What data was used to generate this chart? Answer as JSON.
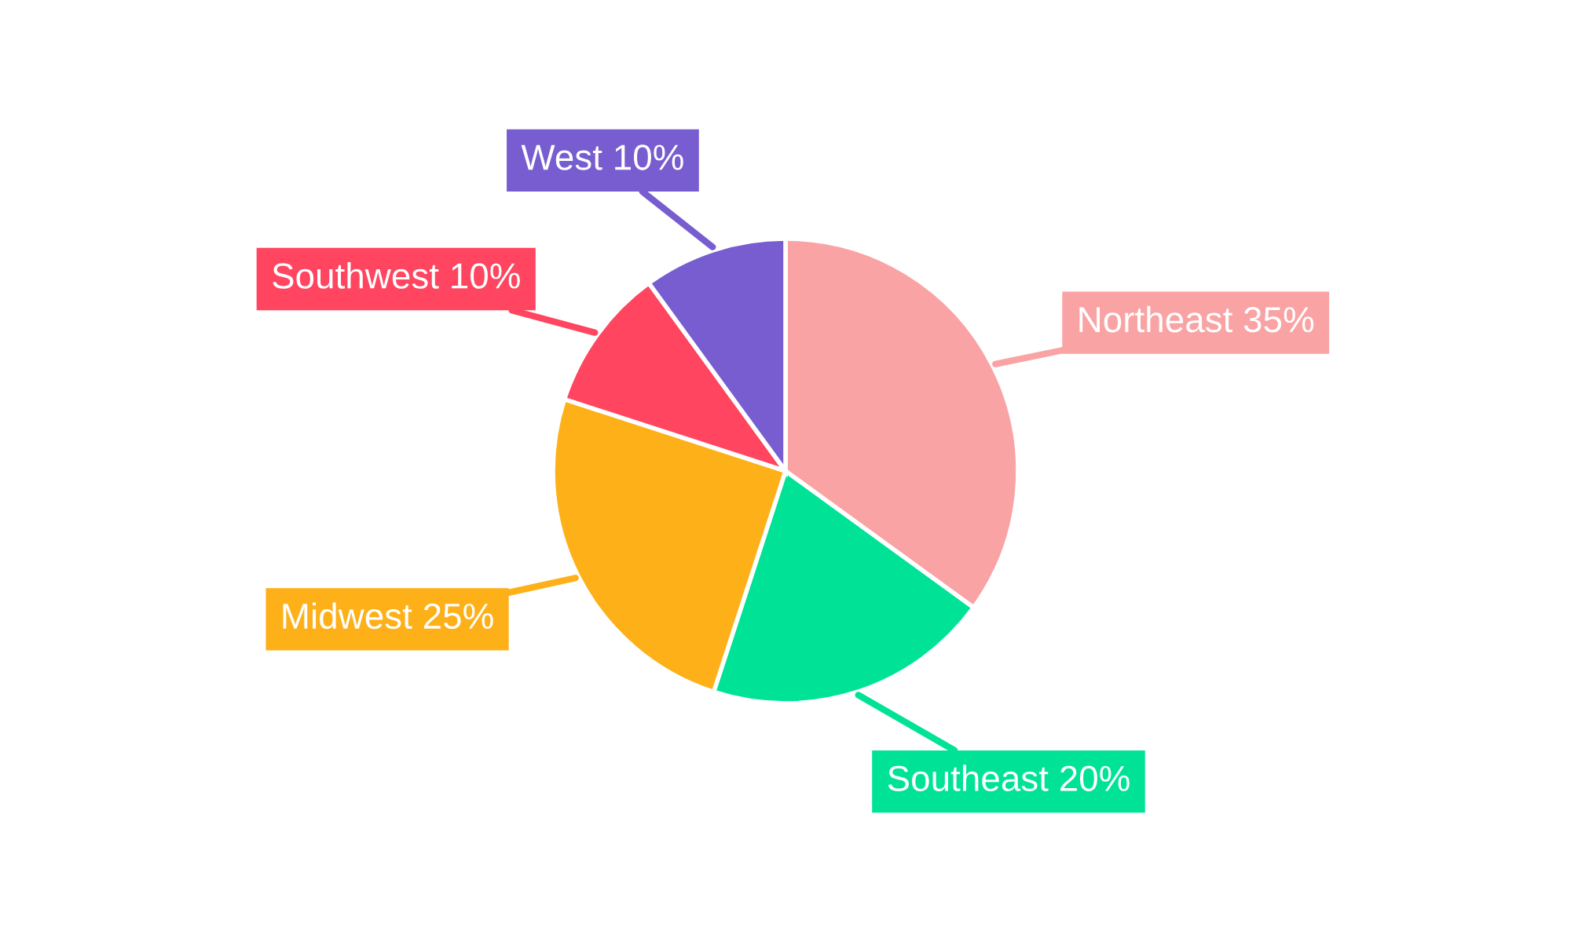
{
  "chart_data": {
    "type": "pie",
    "categories": [
      "Northeast",
      "Southeast",
      "Midwest",
      "Southwest",
      "West"
    ],
    "values": [
      35,
      20,
      25,
      10,
      10
    ],
    "colors": [
      "#f9a3a4",
      "#00e396",
      "#feb019",
      "#ff4560",
      "#775dd0"
    ],
    "value_labels": [
      "35%",
      "20%",
      "25%",
      "10%",
      "10%"
    ]
  }
}
